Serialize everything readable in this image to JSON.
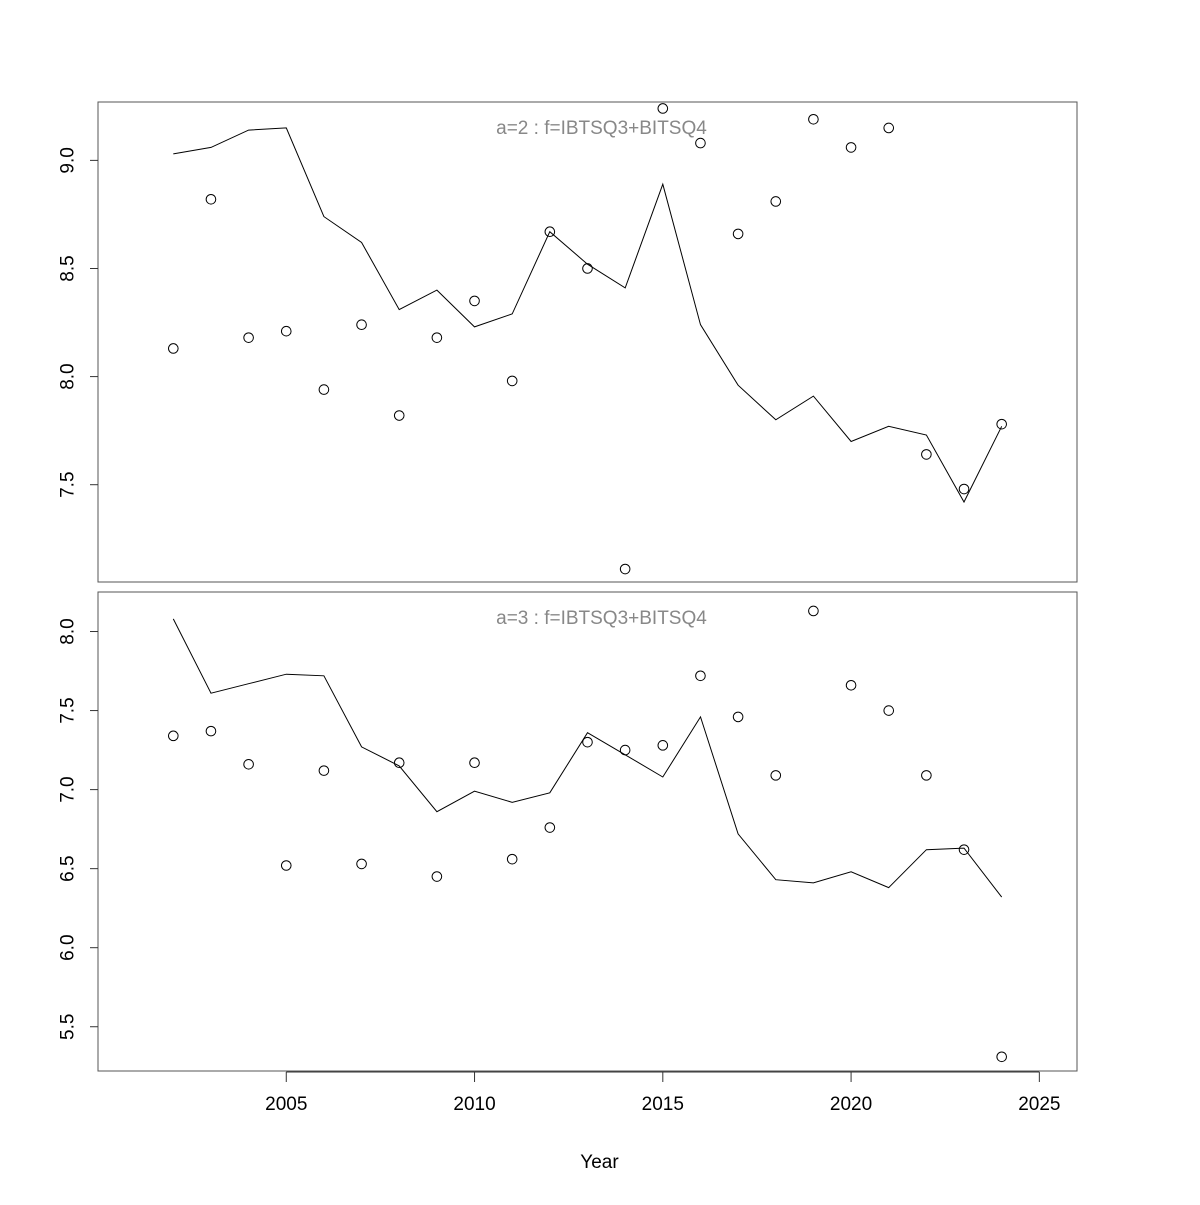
{
  "chart_data": [
    {
      "type": "line",
      "title": "a=2  :  f=IBTSQ3+BITSQ4",
      "xlabel": "",
      "ylabel": "",
      "xlim": [
        2000,
        2026
      ],
      "ylim": [
        7.05,
        9.27
      ],
      "yticks": [
        "7.5",
        "8.0",
        "8.5",
        "9.0"
      ],
      "xticks": [],
      "grid": false,
      "legend": "none",
      "x": [
        2002,
        2003,
        2004,
        2005,
        2006,
        2007,
        2008,
        2009,
        2010,
        2011,
        2012,
        2013,
        2014,
        2015,
        2016,
        2017,
        2018,
        2019,
        2020,
        2021,
        2022,
        2023,
        2024
      ],
      "series": [
        {
          "style": "line",
          "values": [
            9.03,
            9.06,
            9.14,
            9.15,
            8.74,
            8.62,
            8.31,
            8.4,
            8.23,
            8.29,
            8.67,
            8.52,
            8.41,
            8.89,
            8.24,
            7.96,
            7.8,
            7.91,
            7.7,
            7.77,
            7.73,
            7.42,
            7.77
          ]
        },
        {
          "style": "points",
          "values": [
            8.13,
            8.82,
            8.18,
            8.21,
            7.94,
            8.24,
            7.82,
            8.18,
            8.35,
            7.98,
            8.67,
            8.5,
            7.11,
            9.24,
            9.08,
            8.66,
            8.81,
            9.19,
            9.06,
            9.15,
            7.64,
            7.48,
            7.78
          ]
        }
      ]
    },
    {
      "type": "line",
      "title": "a=3  :  f=IBTSQ3+BITSQ4",
      "xlabel": "Year",
      "ylabel": "",
      "xlim": [
        2000,
        2026
      ],
      "ylim": [
        5.22,
        8.25
      ],
      "yticks": [
        "5.5",
        "6.0",
        "6.5",
        "7.0",
        "7.5",
        "8.0"
      ],
      "xticks": [
        "2005",
        "2010",
        "2015",
        "2020",
        "2025"
      ],
      "grid": false,
      "legend": "none",
      "x": [
        2002,
        2003,
        2004,
        2005,
        2006,
        2007,
        2008,
        2009,
        2010,
        2011,
        2012,
        2013,
        2014,
        2015,
        2016,
        2017,
        2018,
        2019,
        2020,
        2021,
        2022,
        2023,
        2024
      ],
      "series": [
        {
          "style": "line",
          "values": [
            8.08,
            7.61,
            7.67,
            7.73,
            7.72,
            7.27,
            7.15,
            6.86,
            6.99,
            6.92,
            6.98,
            7.36,
            7.22,
            7.08,
            7.46,
            6.72,
            6.43,
            6.41,
            6.48,
            6.38,
            6.62,
            6.63,
            6.32
          ]
        },
        {
          "style": "points",
          "values": [
            7.34,
            7.37,
            7.16,
            6.52,
            7.12,
            6.53,
            7.17,
            6.45,
            7.17,
            6.56,
            6.76,
            7.3,
            7.25,
            7.28,
            7.72,
            7.46,
            7.09,
            8.13,
            7.66,
            7.5,
            7.09,
            6.62,
            5.31
          ]
        }
      ]
    }
  ]
}
